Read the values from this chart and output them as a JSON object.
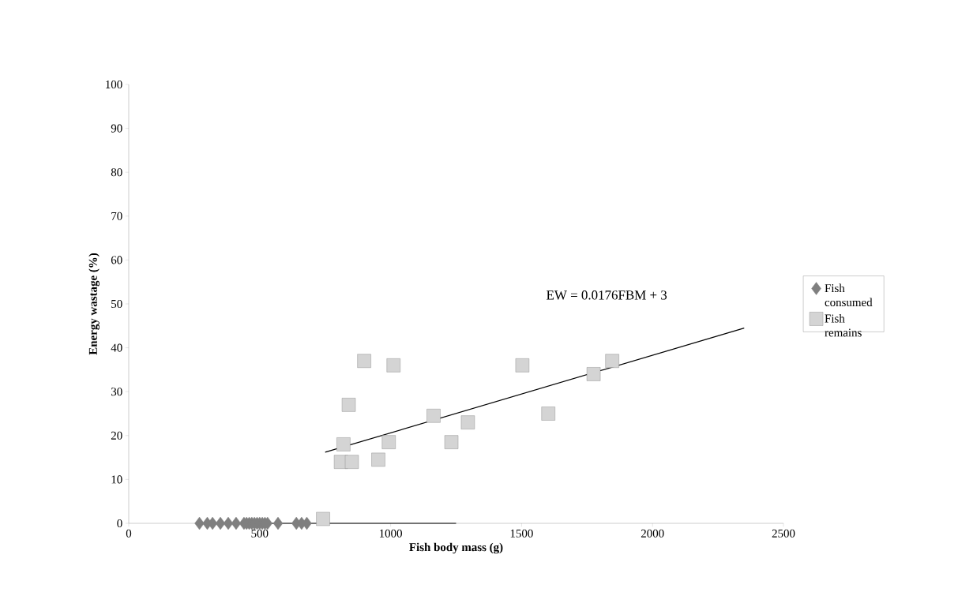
{
  "chart_data": {
    "type": "scatter",
    "xlabel": "Fish body mass (g)",
    "ylabel": "Energy wastage (%)",
    "xlim": [
      0,
      2500
    ],
    "xticks": [
      0,
      500,
      1000,
      1500,
      2000,
      2500
    ],
    "ylim": [
      0,
      100
    ],
    "yticks": [
      0,
      10,
      20,
      30,
      40,
      50,
      60,
      70,
      80,
      90,
      100
    ],
    "legend": "right",
    "annotations": [
      "EW = 0.0176FBM + 3"
    ],
    "series": [
      {
        "name": "Fish consumed",
        "marker": "diamond",
        "color": "#7f7f7f",
        "x": [
          270,
          300,
          320,
          350,
          380,
          410,
          440,
          450,
          460,
          470,
          480,
          490,
          500,
          510,
          520,
          530,
          570,
          640,
          660,
          680
        ],
        "values": [
          0,
          0,
          0,
          0,
          0,
          0,
          0,
          0,
          0,
          0,
          0,
          0,
          0,
          0,
          0,
          0,
          0,
          0,
          0,
          0
        ]
      },
      {
        "name": "Fish remains",
        "marker": "square",
        "color": "#d4d4d4",
        "x": [
          742,
          810,
          820,
          840,
          852,
          899,
          953,
          993,
          1011,
          1164,
          1232,
          1295,
          1503,
          1602,
          1775,
          1846
        ],
        "values": [
          1,
          14,
          18,
          27,
          14,
          37,
          14.5,
          18.5,
          36,
          24.5,
          18.5,
          23,
          36,
          25,
          34,
          37
        ]
      },
      {
        "type": "line",
        "color": "#000000",
        "x": [
          750,
          2350
        ],
        "values": [
          16.2,
          44.5
        ]
      },
      {
        "type": "line",
        "color": "#000000",
        "x": [
          290,
          1250
        ],
        "values": [
          0,
          0
        ]
      }
    ]
  }
}
